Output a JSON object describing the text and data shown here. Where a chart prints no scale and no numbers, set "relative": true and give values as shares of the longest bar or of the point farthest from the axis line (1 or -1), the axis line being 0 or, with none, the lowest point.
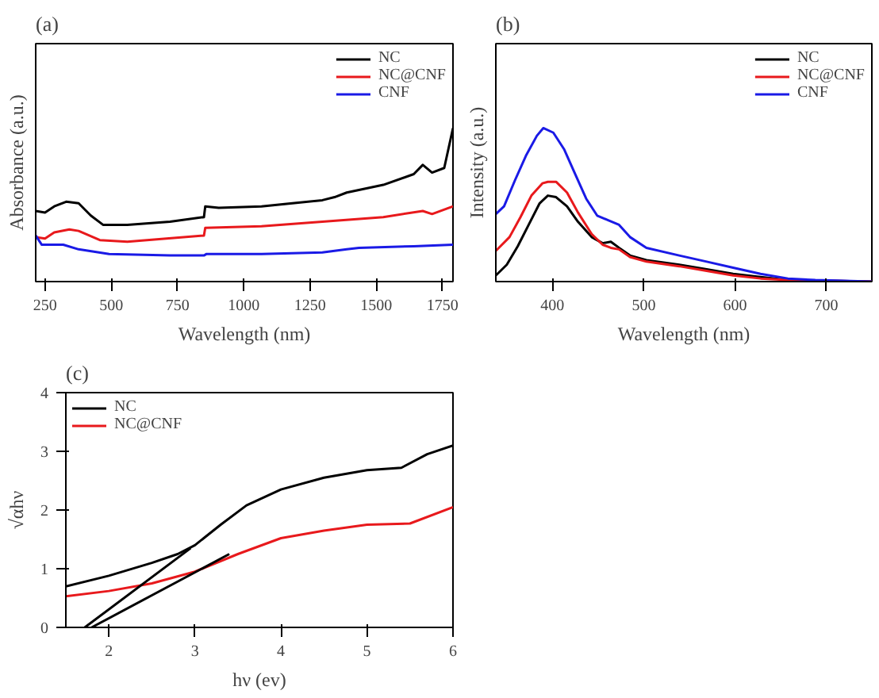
{
  "chart_data": [
    {
      "type": "line",
      "title": "(a)",
      "xlabel": "Wavelength (nm)",
      "ylabel": "Absorbance (a.u.)",
      "relative": true,
      "xlim": [
        215,
        1790
      ],
      "xticks": [
        250,
        500,
        750,
        1000,
        1250,
        1500,
        1750
      ],
      "legend": "top right",
      "grid": false,
      "tick_labels": "x",
      "series": [
        {
          "name": "NC",
          "color": "#000000",
          "x": [
            215,
            250,
            285,
            330,
            377,
            423,
            469,
            561,
            722,
            850,
            855,
            906,
            1067,
            1297,
            1343,
            1389,
            1527,
            1642,
            1676,
            1711,
            1757,
            1790
          ],
          "values": [
            0.46,
            0.45,
            0.49,
            0.52,
            0.51,
            0.43,
            0.37,
            0.37,
            0.39,
            0.42,
            0.49,
            0.48,
            0.49,
            0.53,
            0.55,
            0.58,
            0.63,
            0.7,
            0.76,
            0.71,
            0.74,
            1.0
          ]
        },
        {
          "name": "NC@CNF",
          "color": "#e8191c",
          "x": [
            215,
            250,
            285,
            342,
            377,
            457,
            561,
            850,
            855,
            1067,
            1297,
            1527,
            1676,
            1711,
            1790
          ],
          "values": [
            0.29,
            0.28,
            0.32,
            0.34,
            0.33,
            0.27,
            0.26,
            0.3,
            0.35,
            0.36,
            0.39,
            0.42,
            0.46,
            0.44,
            0.49
          ]
        },
        {
          "name": "CNF",
          "color": "#1a1ae6",
          "x": [
            215,
            238,
            319,
            377,
            492,
            722,
            850,
            860,
            1067,
            1297,
            1389,
            1435,
            1642,
            1790
          ],
          "values": [
            0.3,
            0.24,
            0.24,
            0.21,
            0.18,
            0.17,
            0.17,
            0.18,
            0.18,
            0.19,
            0.21,
            0.22,
            0.23,
            0.24
          ]
        }
      ]
    },
    {
      "type": "line",
      "title": "(b)",
      "xlabel": "Wavelength (nm)",
      "ylabel": "Intensity (a.u.)",
      "relative": true,
      "xlim": [
        338,
        750
      ],
      "xticks": [
        400,
        500,
        600,
        700
      ],
      "legend": "top right",
      "grid": false,
      "tick_labels": "x",
      "series": [
        {
          "name": "NC",
          "color": "#000000",
          "x": [
            338,
            350,
            362,
            374,
            386,
            395,
            404,
            416,
            428,
            443,
            455,
            464,
            473,
            485,
            503,
            539,
            569,
            598,
            628,
            658,
            750
          ],
          "values": [
            0.04,
            0.11,
            0.23,
            0.37,
            0.51,
            0.56,
            0.55,
            0.49,
            0.39,
            0.29,
            0.25,
            0.26,
            0.22,
            0.17,
            0.14,
            0.11,
            0.08,
            0.05,
            0.03,
            0.01,
            0.0
          ]
        },
        {
          "name": "NC@CNF",
          "color": "#e8191c",
          "x": [
            338,
            353,
            365,
            377,
            389,
            395,
            404,
            416,
            428,
            443,
            455,
            464,
            473,
            485,
            503,
            539,
            569,
            598,
            628,
            658,
            750
          ],
          "values": [
            0.2,
            0.29,
            0.42,
            0.56,
            0.64,
            0.65,
            0.65,
            0.58,
            0.45,
            0.31,
            0.24,
            0.22,
            0.21,
            0.16,
            0.13,
            0.1,
            0.07,
            0.04,
            0.02,
            0.01,
            0.0
          ]
        },
        {
          "name": "CNF",
          "color": "#1a1ae6",
          "x": [
            338,
            347,
            359,
            371,
            383,
            390,
            401,
            413,
            425,
            437,
            449,
            461,
            473,
            485,
            503,
            539,
            569,
            598,
            628,
            658,
            688,
            750
          ],
          "values": [
            0.44,
            0.49,
            0.66,
            0.82,
            0.95,
            1.0,
            0.97,
            0.86,
            0.7,
            0.54,
            0.43,
            0.4,
            0.37,
            0.29,
            0.22,
            0.17,
            0.13,
            0.09,
            0.05,
            0.02,
            0.01,
            0.0
          ]
        }
      ]
    },
    {
      "type": "line",
      "title": "(c)",
      "xlabel": "hν (ev)",
      "ylabel": "√αhν",
      "xlim": [
        1.5,
        6
      ],
      "xticks": [
        2,
        3,
        4,
        5,
        6
      ],
      "ylim": [
        0,
        4
      ],
      "yticks": [
        0,
        1,
        2,
        3,
        4
      ],
      "legend": "top left",
      "grid": false,
      "series": [
        {
          "name": "NC",
          "color": "#000000",
          "x": [
            1.5,
            2,
            2.5,
            2.8,
            3,
            3.3,
            3.6,
            4,
            4.5,
            5,
            5.4,
            5.7,
            6
          ],
          "values": [
            0.7,
            0.88,
            1.1,
            1.25,
            1.4,
            1.75,
            2.08,
            2.35,
            2.55,
            2.68,
            2.72,
            2.95,
            3.1
          ]
        },
        {
          "name": "NC@CNF",
          "color": "#e8191c",
          "x": [
            1.5,
            2,
            2.5,
            3,
            3.5,
            4,
            4.5,
            5,
            5.5,
            6
          ],
          "values": [
            0.53,
            0.62,
            0.75,
            0.95,
            1.25,
            1.52,
            1.65,
            1.75,
            1.77,
            2.05
          ]
        },
        {
          "color": "#000000",
          "x": [
            1.72,
            2.95
          ],
          "values": [
            0,
            1.35
          ]
        },
        {
          "color": "#000000",
          "x": [
            1.8,
            3.4
          ],
          "values": [
            0,
            1.25
          ]
        }
      ]
    }
  ]
}
